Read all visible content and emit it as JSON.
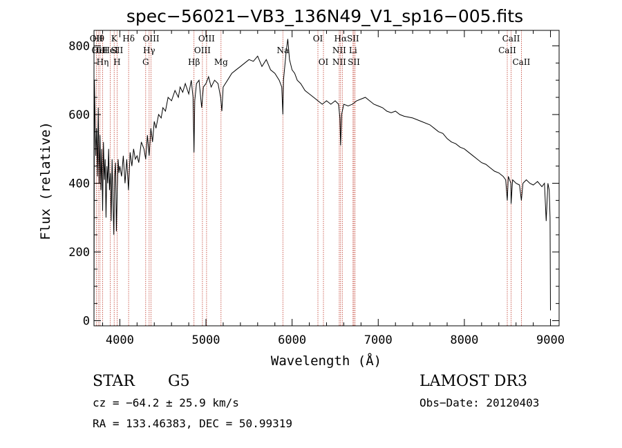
{
  "chart_data": {
    "type": "line",
    "title": "spec−56021−VB3_136N49_V1_sp16−005.fits",
    "xlabel": "Wavelength (Å)",
    "ylabel": "Flux (relative)",
    "xlim": [
      3700,
      9100
    ],
    "ylim": [
      -15,
      845
    ],
    "xticks": [
      4000,
      5000,
      6000,
      7000,
      8000,
      9000
    ],
    "yticks": [
      0,
      200,
      400,
      600,
      800
    ],
    "series": [
      {
        "name": "spectrum",
        "points": [
          [
            3700,
            0
          ],
          [
            3705,
            700
          ],
          [
            3712,
            600
          ],
          [
            3720,
            480
          ],
          [
            3730,
            560
          ],
          [
            3740,
            420
          ],
          [
            3750,
            620
          ],
          [
            3760,
            400
          ],
          [
            3770,
            540
          ],
          [
            3780,
            380
          ],
          [
            3790,
            500
          ],
          [
            3800,
            320
          ],
          [
            3810,
            520
          ],
          [
            3820,
            410
          ],
          [
            3830,
            470
          ],
          [
            3840,
            300
          ],
          [
            3850,
            450
          ],
          [
            3860,
            400
          ],
          [
            3870,
            500
          ],
          [
            3880,
            380
          ],
          [
            3890,
            430
          ],
          [
            3900,
            290
          ],
          [
            3910,
            470
          ],
          [
            3920,
            360
          ],
          [
            3930,
            250
          ],
          [
            3940,
            420
          ],
          [
            3950,
            460
          ],
          [
            3960,
            260
          ],
          [
            3970,
            380
          ],
          [
            3980,
            470
          ],
          [
            3990,
            430
          ],
          [
            4000,
            450
          ],
          [
            4020,
            420
          ],
          [
            4040,
            480
          ],
          [
            4060,
            400
          ],
          [
            4080,
            470
          ],
          [
            4100,
            380
          ],
          [
            4120,
            490
          ],
          [
            4140,
            450
          ],
          [
            4160,
            500
          ],
          [
            4180,
            470
          ],
          [
            4200,
            480
          ],
          [
            4220,
            460
          ],
          [
            4250,
            520
          ],
          [
            4280,
            500
          ],
          [
            4300,
            470
          ],
          [
            4320,
            540
          ],
          [
            4340,
            480
          ],
          [
            4360,
            560
          ],
          [
            4380,
            520
          ],
          [
            4400,
            580
          ],
          [
            4420,
            560
          ],
          [
            4450,
            600
          ],
          [
            4480,
            590
          ],
          [
            4500,
            620
          ],
          [
            4530,
            610
          ],
          [
            4560,
            650
          ],
          [
            4600,
            640
          ],
          [
            4640,
            670
          ],
          [
            4680,
            650
          ],
          [
            4700,
            680
          ],
          [
            4730,
            665
          ],
          [
            4760,
            690
          ],
          [
            4800,
            660
          ],
          [
            4830,
            700
          ],
          [
            4850,
            650
          ],
          [
            4861,
            490
          ],
          [
            4870,
            640
          ],
          [
            4890,
            690
          ],
          [
            4920,
            700
          ],
          [
            4950,
            620
          ],
          [
            4970,
            680
          ],
          [
            5000,
            690
          ],
          [
            5030,
            710
          ],
          [
            5060,
            680
          ],
          [
            5100,
            700
          ],
          [
            5140,
            690
          ],
          [
            5170,
            650
          ],
          [
            5184,
            610
          ],
          [
            5200,
            680
          ],
          [
            5250,
            700
          ],
          [
            5300,
            720
          ],
          [
            5350,
            730
          ],
          [
            5400,
            740
          ],
          [
            5450,
            750
          ],
          [
            5500,
            760
          ],
          [
            5550,
            755
          ],
          [
            5600,
            770
          ],
          [
            5650,
            740
          ],
          [
            5700,
            760
          ],
          [
            5750,
            730
          ],
          [
            5800,
            720
          ],
          [
            5850,
            700
          ],
          [
            5880,
            680
          ],
          [
            5893,
            600
          ],
          [
            5900,
            700
          ],
          [
            5930,
            780
          ],
          [
            5950,
            820
          ],
          [
            5970,
            760
          ],
          [
            6000,
            730
          ],
          [
            6030,
            720
          ],
          [
            6060,
            700
          ],
          [
            6100,
            690
          ],
          [
            6150,
            670
          ],
          [
            6200,
            660
          ],
          [
            6250,
            650
          ],
          [
            6300,
            640
          ],
          [
            6350,
            630
          ],
          [
            6400,
            640
          ],
          [
            6450,
            630
          ],
          [
            6500,
            640
          ],
          [
            6540,
            630
          ],
          [
            6555,
            590
          ],
          [
            6563,
            510
          ],
          [
            6575,
            600
          ],
          [
            6600,
            630
          ],
          [
            6650,
            625
          ],
          [
            6700,
            630
          ],
          [
            6750,
            640
          ],
          [
            6800,
            645
          ],
          [
            6850,
            650
          ],
          [
            6900,
            640
          ],
          [
            6950,
            630
          ],
          [
            7000,
            625
          ],
          [
            7050,
            620
          ],
          [
            7100,
            610
          ],
          [
            7150,
            605
          ],
          [
            7200,
            610
          ],
          [
            7250,
            600
          ],
          [
            7300,
            595
          ],
          [
            7400,
            590
          ],
          [
            7500,
            580
          ],
          [
            7600,
            570
          ],
          [
            7650,
            560
          ],
          [
            7700,
            550
          ],
          [
            7750,
            545
          ],
          [
            7800,
            530
          ],
          [
            7850,
            520
          ],
          [
            7900,
            515
          ],
          [
            7950,
            505
          ],
          [
            8000,
            500
          ],
          [
            8050,
            490
          ],
          [
            8100,
            480
          ],
          [
            8150,
            470
          ],
          [
            8200,
            460
          ],
          [
            8250,
            455
          ],
          [
            8300,
            445
          ],
          [
            8350,
            435
          ],
          [
            8400,
            430
          ],
          [
            8450,
            420
          ],
          [
            8480,
            410
          ],
          [
            8498,
            350
          ],
          [
            8510,
            420
          ],
          [
            8540,
            400
          ],
          [
            8542,
            340
          ],
          [
            8560,
            410
          ],
          [
            8600,
            400
          ],
          [
            8640,
            395
          ],
          [
            8662,
            350
          ],
          [
            8680,
            400
          ],
          [
            8720,
            410
          ],
          [
            8760,
            400
          ],
          [
            8800,
            395
          ],
          [
            8850,
            405
          ],
          [
            8900,
            390
          ],
          [
            8930,
            400
          ],
          [
            8950,
            290
          ],
          [
            8970,
            400
          ],
          [
            8985,
            380
          ],
          [
            8995,
            300
          ],
          [
            9000,
            30
          ]
        ]
      }
    ],
    "lines": [
      {
        "wave": 3727,
        "rows": [
          "OII"
        ]
      },
      {
        "wave": 3750,
        "rows": [
          "Hθ",
          "OII"
        ]
      },
      {
        "wave": 3770,
        "rows": [
          "",
          "HeI"
        ]
      },
      {
        "wave": 3800,
        "rows": [
          "",
          "",
          "Hη"
        ]
      },
      {
        "wave": 3889,
        "rows": [
          "",
          "HeI"
        ]
      },
      {
        "wave": 3934,
        "rows": [
          "K"
        ]
      },
      {
        "wave": 3968,
        "rows": [
          "",
          "SII",
          "H"
        ]
      },
      {
        "wave": 4102,
        "rows": [
          "Hδ"
        ]
      },
      {
        "wave": 4300,
        "rows": [
          "",
          "",
          "G"
        ]
      },
      {
        "wave": 4340,
        "rows": [
          "",
          "Hγ"
        ]
      },
      {
        "wave": 4363,
        "rows": [
          "OIII"
        ]
      },
      {
        "wave": 4861,
        "rows": [
          "",
          "",
          "Hβ"
        ]
      },
      {
        "wave": 4959,
        "rows": [
          "",
          "OIII"
        ]
      },
      {
        "wave": 5007,
        "rows": [
          "OIII"
        ]
      },
      {
        "wave": 5175,
        "rows": [
          "",
          "",
          "Mg"
        ]
      },
      {
        "wave": 5893,
        "rows": [
          "",
          "Na"
        ]
      },
      {
        "wave": 6300,
        "rows": [
          "OI"
        ]
      },
      {
        "wave": 6364,
        "rows": [
          "",
          "",
          "OI"
        ]
      },
      {
        "wave": 6548,
        "rows": [
          "",
          "NII",
          "NII"
        ]
      },
      {
        "wave": 6563,
        "rows": [
          "Hα"
        ]
      },
      {
        "wave": 6583,
        "rows": [
          "",
          "",
          ""
        ]
      },
      {
        "wave": 6707,
        "rows": [
          "SII",
          "Li"
        ]
      },
      {
        "wave": 6717,
        "rows": [
          "",
          "",
          "SII"
        ]
      },
      {
        "wave": 6731,
        "rows": [
          "",
          "",
          ""
        ]
      },
      {
        "wave": 8498,
        "rows": [
          "",
          "CaII"
        ]
      },
      {
        "wave": 8542,
        "rows": [
          "CaII"
        ]
      },
      {
        "wave": 8662,
        "rows": [
          "",
          "",
          "CaII"
        ]
      }
    ]
  },
  "info": {
    "object_class": "STAR",
    "subclass": "G5",
    "survey": "LAMOST DR3",
    "redshift": "cz = −64.2 ± 25.9 km/s",
    "obs_date": "Obs−Date: 20120403",
    "coords": "RA = 133.46383, DEC =  50.99319"
  },
  "colors": {
    "spectrum": "#000000",
    "line_markers": "#c0392b",
    "frame": "#000000"
  }
}
